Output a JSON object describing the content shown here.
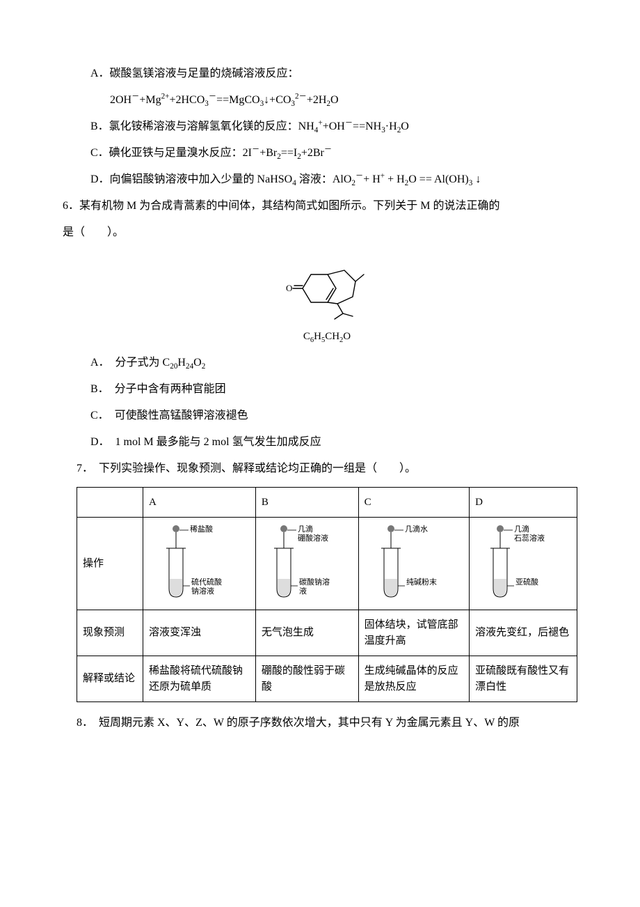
{
  "q5": {
    "A1": "A．碳酸氢镁溶液与足量的烧碱溶液反应：",
    "A2_html": "2OH<sup>－</sup>+Mg<sup>2+</sup>+2HCO<sub>3</sub><sup>－</sup>==MgCO<sub>3</sub>↓+CO<sub>3</sub><sup>2－</sup>+2H<sub>2</sub>O",
    "B_html": "B．氯化铵稀溶液与溶解氢氧化镁的反应：NH<sub>4</sub><sup>+</sup>+OH<sup>－</sup>==NH<sub>3</sub>·H<sub>2</sub>O",
    "C_html": "C．碘化亚铁与足量溴水反应：2I<sup>－</sup>+Br<sub>2</sub>==I<sub>2</sub>+2Br<sup>－</sup>",
    "D_html": "D．向偏铝酸钠溶液中加入少量的 NaHSO<sub>4</sub> 溶液：AlO<sub>2</sub><sup>－</sup>+ H<sup>+</sup> + H<sub>2</sub>O == Al(OH)<sub>3</sub> ↓"
  },
  "q6": {
    "stem1": "6．某有机物 M 为合成青蒿素的中间体，其结构简式如图所示。下列关于 M 的说法正确的",
    "stem2": "是（　　）。",
    "fig_caption_html": "C<sub>6</sub>H<sub>5</sub>CH<sub>2</sub>O",
    "A_html": "A．　分子式为 C<sub>20</sub>H<sub>24</sub>O<sub>2</sub>",
    "B": "B．　分子中含有两种官能团",
    "C": "C．　可使酸性高锰酸钾溶液褪色",
    "D": "D．　1 mol M 最多能与 2 mol 氢气发生加成反应"
  },
  "q7": {
    "stem": "7．　下列实验操作、现象预测、解释或结论均正确的一组是（　　）。",
    "cols": [
      "A",
      "B",
      "C",
      "D"
    ],
    "row1_label": "操作",
    "row2_label": "现象预测",
    "row3_label": "解释或结论",
    "tubes": [
      {
        "drip": "稀盐酸",
        "content": "硫代硫酸钠溶液"
      },
      {
        "drip": "几滴硼酸溶液",
        "content": "碳酸钠溶液"
      },
      {
        "drip": "几滴水",
        "content": "纯碱粉末"
      },
      {
        "drip": "几滴石蕊溶液",
        "content": "亚硫酸"
      }
    ],
    "row2": [
      "溶液变浑浊",
      "无气泡生成",
      "固体结块，试管底部温度升高",
      "溶液先变红，后褪色"
    ],
    "row3": [
      "稀盐酸将硫代硫酸钠还原为硫单质",
      "硼酸的酸性弱于碳酸",
      "生成纯碱晶体的反应是放热反应",
      "亚硫酸既有酸性又有漂白性"
    ]
  },
  "q8": {
    "stem": "8．　短周期元素 X、Y、Z、W 的原子序数依次增大，其中只有 Y 为金属元素且 Y、W 的原"
  },
  "svg": {
    "molecule_stroke": "#000",
    "molecule_stroke_width": 1.4,
    "tube_stroke": "#000",
    "label_font_size": 11
  }
}
